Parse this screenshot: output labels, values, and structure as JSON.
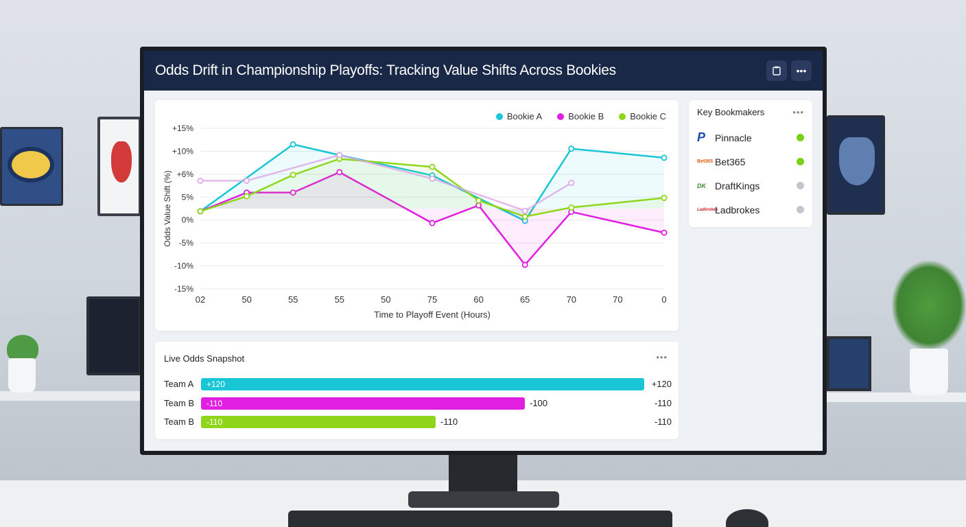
{
  "window": {
    "title": "Odds Drift in Championship Playoffs: Tracking Value Shifts Across Bookies",
    "icons": [
      "clipboard-icon",
      "more-icon"
    ]
  },
  "colors": {
    "bookie_a": "#19c6d6",
    "bookie_b": "#e01fe0",
    "bookie_c": "#8fd61a",
    "faded": "#dda8e6",
    "active": "#7ccf1a",
    "inactive": "#c3c7cc"
  },
  "chart_data": {
    "type": "line",
    "xlabel": "Time to Playoff Event (Hours)",
    "ylabel": "Odds Value Shift (%)",
    "categories": [
      "02",
      "50",
      "55",
      "55",
      "50",
      "75",
      "60",
      "65",
      "70",
      "70",
      "0"
    ],
    "y_ticks": [
      "+15%",
      "+10%",
      "+6%",
      "5%",
      "0%",
      "-5%",
      "-10%",
      "-15%"
    ],
    "ylim": [
      -15,
      15
    ],
    "grid": true,
    "legend_position": "top-right",
    "series": [
      {
        "name": "Bookie A",
        "color": "#19c6d6",
        "values": [
          -0.5,
          null,
          12,
          10,
          null,
          6.2,
          null,
          -2.3,
          11.2,
          null,
          9.5
        ]
      },
      {
        "name": "Bookie B",
        "color": "#e01fe0",
        "values": [
          -0.5,
          3,
          3,
          6.8,
          null,
          -2.7,
          0.6,
          -10.5,
          -0.6,
          null,
          -4.5
        ]
      },
      {
        "name": "Bookie C",
        "color": "#8fd61a",
        "values": [
          -0.5,
          2.3,
          6.3,
          9.3,
          null,
          7.8,
          1.5,
          -1.5,
          0.2,
          null,
          2
        ]
      },
      {
        "name": "",
        "color": "#dda8e6",
        "values": [
          5.2,
          5.2,
          null,
          10,
          null,
          5.6,
          null,
          -0.4,
          4.8,
          null,
          null
        ]
      }
    ]
  },
  "sidebar": {
    "title": "Key Bookmakers",
    "items": [
      {
        "name": "Pinnacle",
        "logo": "P",
        "status": "active"
      },
      {
        "name": "Bet365",
        "logo": "Bet365",
        "status": "active"
      },
      {
        "name": "DraftKings",
        "logo": "DK",
        "status": "inactive"
      },
      {
        "name": "Ladbrokes",
        "logo": "Ladbrokes",
        "status": "inactive"
      }
    ]
  },
  "snapshot": {
    "title": "Live Odds Snapshot",
    "rows": [
      {
        "team": "Team A",
        "bar_label": "+120",
        "mid_label": "",
        "end_label": "+120",
        "fill": 1.0,
        "color": "#19c6d6"
      },
      {
        "team": "Team B",
        "bar_label": "-110",
        "mid_label": "-100",
        "end_label": "-110",
        "fill": 0.73,
        "color": "#e01fe0"
      },
      {
        "team": "Team B",
        "bar_label": "-110",
        "mid_label": "-110",
        "end_label": "-110",
        "fill": 0.53,
        "color": "#8fd61a"
      }
    ]
  }
}
